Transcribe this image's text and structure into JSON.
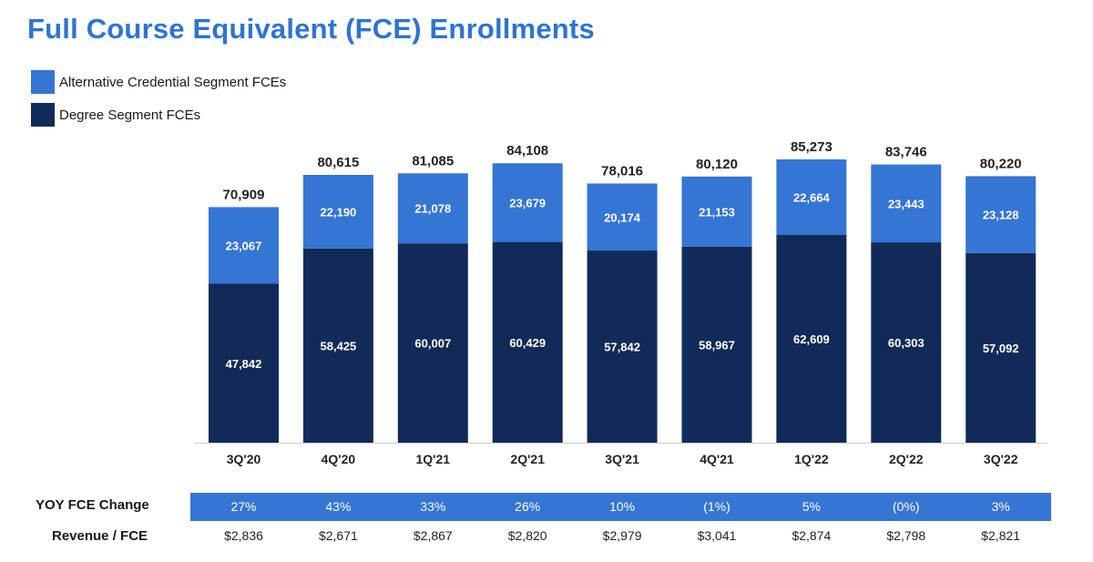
{
  "title": "Full Course Equivalent (FCE) Enrollments",
  "colors": {
    "title": "#2f74d0",
    "alt": "#3575d3",
    "degree": "#112b58",
    "band": "#3575d3",
    "axis": "#cfcfcf"
  },
  "legend": [
    {
      "label": "Alternative Credential Segment FCEs",
      "color": "#3575d3"
    },
    {
      "label": "Degree Segment FCEs",
      "color": "#112b58"
    }
  ],
  "chart_data": {
    "type": "bar",
    "stacked": true,
    "title": "Full Course Equivalent (FCE) Enrollments",
    "categories": [
      "3Q'20",
      "4Q'20",
      "1Q'21",
      "2Q'21",
      "3Q'21",
      "4Q'21",
      "1Q'22",
      "2Q'22",
      "3Q'22"
    ],
    "series": [
      {
        "name": "Degree Segment FCEs",
        "values": [
          47842,
          58425,
          60007,
          60429,
          57842,
          58967,
          62609,
          60303,
          57092
        ],
        "labels": [
          "47,842",
          "58,425",
          "60,007",
          "60,429",
          "57,842",
          "58,967",
          "62,609",
          "60,303",
          "57,092"
        ]
      },
      {
        "name": "Alternative Credential Segment FCEs",
        "values": [
          23067,
          22190,
          21078,
          23679,
          20174,
          21153,
          22664,
          23443,
          23128
        ],
        "labels": [
          "23,067",
          "22,190",
          "21,078",
          "23,679",
          "20,174",
          "21,153",
          "22,664",
          "23,443",
          "23,128"
        ]
      }
    ],
    "totals": [
      70909,
      80615,
      81085,
      84108,
      78016,
      80120,
      85273,
      83746,
      80220
    ],
    "total_labels": [
      "70,909",
      "80,615",
      "81,085",
      "84,108",
      "78,016",
      "80,120",
      "85,273",
      "83,746",
      "80,220"
    ],
    "ylim": [
      0,
      85273
    ],
    "legend_position": "top-left",
    "grid": false
  },
  "table": {
    "yoy_label": "YOY FCE Change",
    "yoy_values": [
      "27%",
      "43%",
      "33%",
      "26%",
      "10%",
      "(1%)",
      "5%",
      "(0%)",
      "3%"
    ],
    "revenue_label": "Revenue / FCE",
    "revenue_values": [
      "$2,836",
      "$2,671",
      "$2,867",
      "$2,820",
      "$2,979",
      "$3,041",
      "$2,874",
      "$2,798",
      "$2,821"
    ]
  }
}
